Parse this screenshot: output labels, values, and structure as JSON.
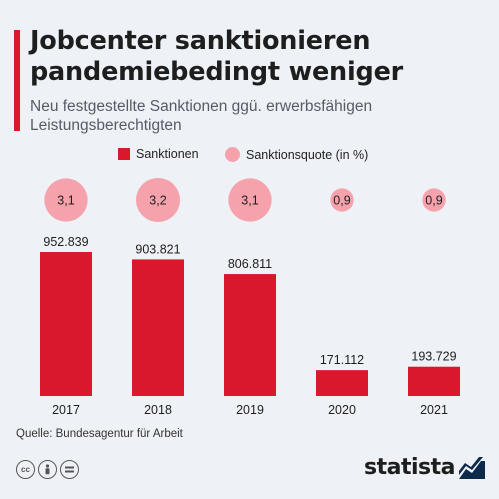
{
  "header": {
    "title_line1": "Jobcenter sanktionieren",
    "title_line2": "pandemiebedingt weniger",
    "subtitle_line1": "Neu festgestellte Sanktionen ggü. erwerbsfähigen",
    "subtitle_line2": "Leistungsberechtigten"
  },
  "legend": {
    "bars": "Sanktionen",
    "bubbles": "Sanktionsquote (in %)"
  },
  "colors": {
    "bar": "#d7192b",
    "bubble": "#f6a2ad",
    "accent": "#d7192b"
  },
  "chart_data": {
    "type": "bar",
    "categories": [
      "2017",
      "2018",
      "2019",
      "2020",
      "2021"
    ],
    "series": [
      {
        "name": "Sanktionen",
        "values": [
          952839,
          903821,
          806811,
          171112,
          193729
        ],
        "labels": [
          "952.839",
          "903.821",
          "806.811",
          "171.112",
          "193.729"
        ]
      },
      {
        "name": "Sanktionsquote (in %)",
        "values": [
          3.1,
          3.2,
          3.1,
          0.9,
          0.9
        ],
        "labels": [
          "3,1",
          "3,2",
          "3,1",
          "0,9",
          "0,9"
        ]
      }
    ],
    "ylim": [
      0,
      952839
    ],
    "grid": false,
    "legend_position": "top-center"
  },
  "footer": {
    "source": "Quelle: Bundesagentur für Arbeit",
    "logo": "statista",
    "license_icons": [
      "cc-icon",
      "person-icon",
      "equals-icon"
    ]
  }
}
